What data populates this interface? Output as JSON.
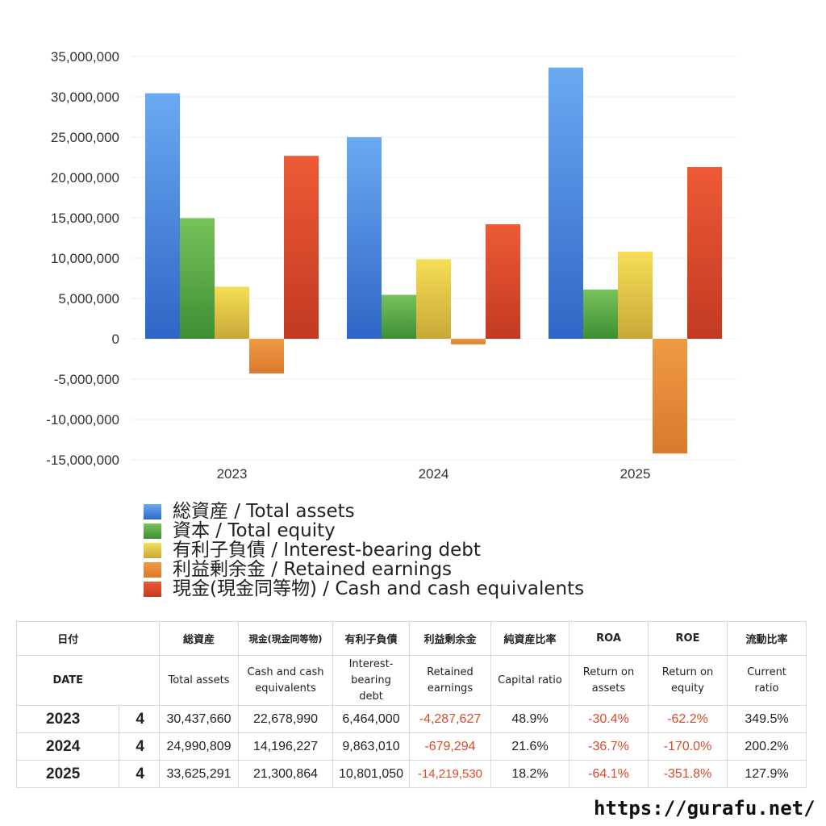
{
  "chart_data": {
    "type": "bar",
    "categories": [
      "2023",
      "2024",
      "2025"
    ],
    "series": [
      {
        "name": "総資産 / Total assets",
        "values": [
          30437660,
          24990809,
          33625291
        ],
        "color_top": "#6aaaf2",
        "color_bottom": "#2f66c6"
      },
      {
        "name": "資本 / Total equity",
        "values": [
          14950000,
          5450000,
          6100000
        ],
        "color_top": "#78c25a",
        "color_bottom": "#3d8f34"
      },
      {
        "name": "有利子負債 / Interest-bearing debt",
        "values": [
          6464000,
          9863010,
          10801050
        ],
        "color_top": "#f5de55",
        "color_bottom": "#c9a838"
      },
      {
        "name": "利益剰余金 / Retained earnings",
        "values": [
          -4287627,
          -679294,
          -14219530
        ],
        "color_top": "#f09a45",
        "color_bottom": "#d97a2c"
      },
      {
        "name": "現金(現金同等物)  /  Cash and cash equivalents",
        "values": [
          22678990,
          14196227,
          21300864
        ],
        "color_top": "#ee5a35",
        "color_bottom": "#c23a22"
      }
    ],
    "ylim": [
      -15000000,
      35000000
    ],
    "yticks": [
      35000000,
      30000000,
      25000000,
      20000000,
      15000000,
      10000000,
      5000000,
      0,
      -5000000,
      -10000000,
      -15000000
    ],
    "ytick_labels": [
      "35,000,000",
      "30,000,000",
      "25,000,000",
      "20,000,000",
      "15,000,000",
      "10,000,000",
      "5,000,000",
      "0",
      "-5,000,000",
      "-10,000,000",
      "-15,000,000"
    ],
    "grid": true,
    "legend_position": "bottom"
  },
  "table": {
    "header_jp": [
      "日付",
      "",
      "総資産",
      "現金(現金同等物)",
      "有利子負債",
      "利益剰余金",
      "純資産比率",
      "ROA",
      "ROE",
      "流動比率"
    ],
    "header_en": [
      "DATE",
      "",
      "Total assets",
      "Cash and cash equivalents",
      "Interest-bearing debt",
      "Retained earnings",
      "Capital ratio",
      "Return on assets",
      "Return on equity",
      "Current ratio"
    ],
    "rows": [
      {
        "date": "2023",
        "month": "4",
        "total_assets": "30,437,660",
        "cash": "22,678,990",
        "debt": "6,464,000",
        "retained": "-4,287,627",
        "capital_ratio": "48.9%",
        "roa": "-30.4%",
        "roe": "-62.2%",
        "current_ratio": "349.5%"
      },
      {
        "date": "2024",
        "month": "4",
        "total_assets": "24,990,809",
        "cash": "14,196,227",
        "debt": "9,863,010",
        "retained": "-679,294",
        "capital_ratio": "21.6%",
        "roa": "-36.7%",
        "roe": "-170.0%",
        "current_ratio": "200.2%"
      },
      {
        "date": "2025",
        "month": "4",
        "total_assets": "33,625,291",
        "cash": "21,300,864",
        "debt": "10,801,050",
        "retained": "-14,219,530",
        "capital_ratio": "18.2%",
        "roa": "-64.1%",
        "roe": "-351.8%",
        "current_ratio": "127.9%"
      }
    ],
    "negative_color": "#d94a2b"
  },
  "site_url": "https://gurafu.net/"
}
